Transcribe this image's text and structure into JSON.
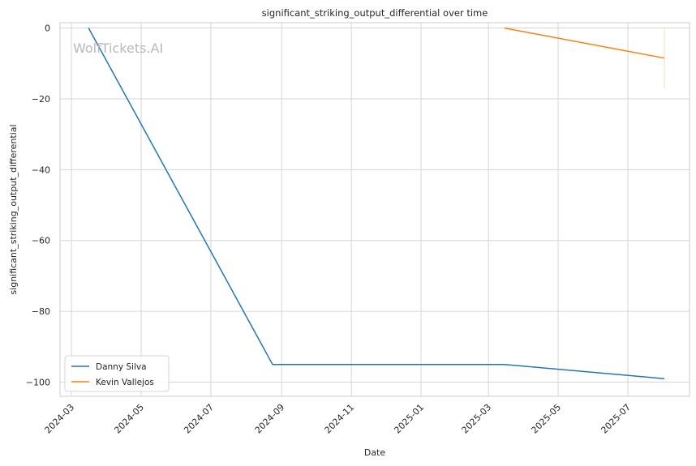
{
  "chart_data": {
    "type": "line",
    "title": "significant_striking_output_differential over time",
    "xlabel": "Date",
    "ylabel": "significant_striking_output_differential",
    "watermark": "WolfTickets.AI",
    "x_ticks": [
      "2024-03",
      "2024-05",
      "2024-07",
      "2024-09",
      "2024-11",
      "2025-01",
      "2025-03",
      "2025-05",
      "2025-07"
    ],
    "y_ticks": [
      0,
      -20,
      -40,
      -60,
      -80,
      -100
    ],
    "y_tick_labels": [
      "0",
      "−20",
      "−40",
      "−60",
      "−80",
      "−100"
    ],
    "xlim": [
      "2024-02-20",
      "2025-08-24"
    ],
    "ylim": [
      -104,
      1.5
    ],
    "grid": true,
    "legend_position": "lower-left",
    "series": [
      {
        "name": "Danny Silva",
        "color": "#1f77b4",
        "points": [
          {
            "x": "2024-03-16",
            "y": 0
          },
          {
            "x": "2024-08-24",
            "y": -95
          },
          {
            "x": "2025-03-15",
            "y": -95
          },
          {
            "x": "2025-08-02",
            "y": -99
          }
        ]
      },
      {
        "name": "Kevin Vallejos",
        "color": "#ff7f0e",
        "points": [
          {
            "x": "2025-03-15",
            "y": 0
          },
          {
            "x": "2025-08-02",
            "y": -8.5
          }
        ]
      }
    ],
    "faint_marker": {
      "x": "2025-08-02",
      "y_range": [
        -17,
        0
      ],
      "color": "#efe0c0"
    }
  }
}
